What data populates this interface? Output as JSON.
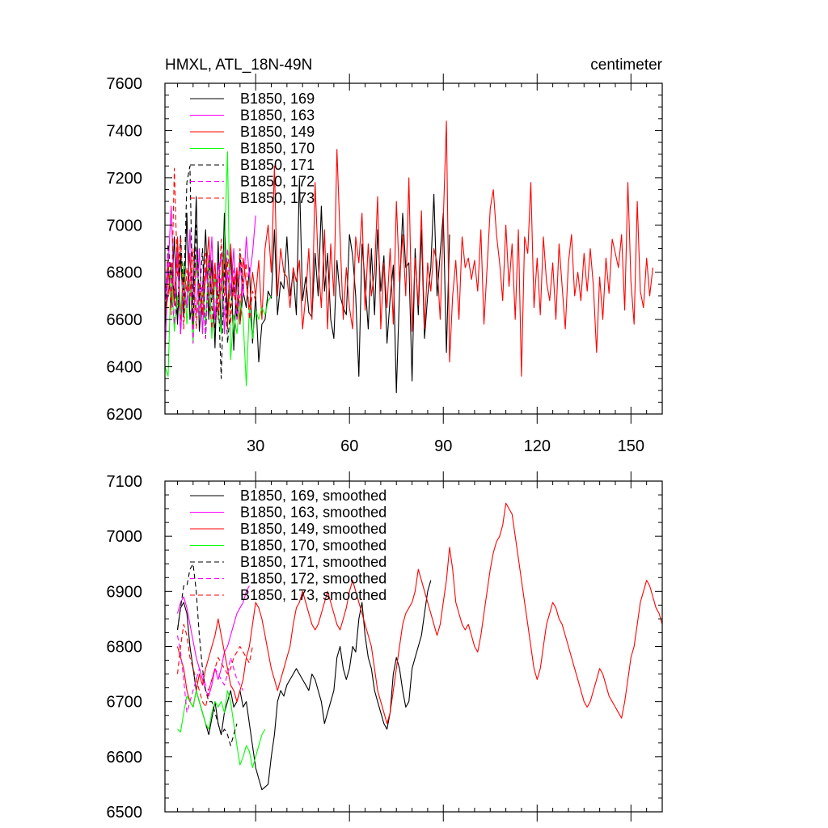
{
  "chart_data": [
    {
      "type": "line",
      "title": "HMXL, ATL_18N-49N",
      "units_label": "centimeter",
      "xlabel": "",
      "ylabel": "",
      "xlim": [
        1,
        160
      ],
      "ylim": [
        6200,
        7600
      ],
      "xticks": [
        30,
        60,
        90,
        120,
        150
      ],
      "yticks": [
        6200,
        6400,
        6600,
        6800,
        7000,
        7200,
        7400,
        7600
      ],
      "legend_position": "top-left",
      "series": [
        {
          "name": "B1850, 169",
          "color": "#000000",
          "dash": "solid",
          "x_start": 1,
          "values": [
            6560,
            6820,
            6650,
            6950,
            6580,
            6880,
            6610,
            7050,
            6600,
            6700,
            7120,
            6550,
            6720,
            6980,
            6600,
            6850,
            6480,
            6930,
            6540,
            7050,
            6610,
            6900,
            6470,
            6800,
            6580,
            6720,
            6650,
            6820,
            6500,
            6700,
            6420,
            6580,
            6600,
            6720,
            6690,
            6980,
            6620,
            6760,
            6730,
            6950,
            6700,
            6800,
            6620,
            7200,
            6680,
            6780,
            6630,
            6610,
            6880,
            6700,
            7080,
            6720,
            6880,
            6600,
            6520,
            6850,
            6700,
            6650,
            6620,
            6960,
            6870,
            6700,
            6360,
            6920,
            6760,
            6560,
            6900,
            6620,
            6980,
            6720,
            6870,
            6500,
            6690,
            6830,
            6290,
            6720,
            7050,
            6820,
            6840,
            6340,
            6900,
            6620,
            6980,
            6520,
            6700,
            6820,
            7130,
            6700,
            6880,
            7050,
            6460,
            6960
          ]
        },
        {
          "name": "B1850, 163",
          "color": "#ff00ff",
          "dash": "solid",
          "x_start": 1,
          "values": [
            6450,
            6820,
            7080,
            6680,
            6900,
            6540,
            6780,
            6650,
            6980,
            6720,
            6620,
            6900,
            6540,
            6820,
            6700,
            6950,
            6600,
            6760,
            6880,
            6540,
            6800,
            6700,
            6900,
            6600,
            6840,
            6700,
            6950,
            6780,
            6880,
            7040
          ]
        },
        {
          "name": "B1850, 149",
          "color": "#ff0000",
          "dash": "solid",
          "x_start": 1,
          "values": [
            6620,
            6700,
            6840,
            6660,
            6950,
            6600,
            6800,
            6720,
            6880,
            6560,
            6840,
            6700,
            6620,
            6780,
            6950,
            6700,
            6840,
            6600,
            6760,
            6880,
            6560,
            6920,
            6700,
            6820,
            6580,
            6860,
            6750,
            6640,
            6800,
            6700,
            6850,
            6600,
            6900,
            7000,
            6800,
            7250,
            6700,
            6900,
            6800,
            6780,
            6650,
            6820,
            6760,
            6850,
            6560,
            6700,
            6900,
            6600,
            7180,
            6840,
            6650,
            6980,
            6560,
            6920,
            6700,
            7320,
            6950,
            6600,
            6820,
            6650,
            6560,
            6950,
            6840,
            7050,
            6640,
            6920,
            6700,
            6800,
            7120,
            6560,
            6840,
            6650,
            6900,
            6580,
            7100,
            6760,
            6960,
            6700,
            7200,
            6550,
            6860,
            6660,
            7060,
            6560,
            6840,
            6720,
            6900,
            6840,
            6600,
            7020,
            7440,
            6420,
            6700,
            6850,
            6600,
            6950,
            6820,
            6860,
            6770,
            6850,
            6720,
            6980,
            6580,
            6820,
            7070,
            7150,
            6960,
            6840,
            6680,
            7000,
            6740,
            6920,
            6600,
            6980,
            6360,
            6950,
            6880,
            7180,
            6650,
            6860,
            6620,
            6950,
            6760,
            6680,
            6840,
            6600,
            6920,
            6740,
            6560,
            6840,
            6960,
            6700,
            6800,
            6680,
            6880,
            6720,
            6900,
            6740,
            6460,
            6780,
            6600,
            6860,
            6710,
            6940,
            6880,
            6820,
            6960,
            6640,
            7180,
            6760,
            6580,
            7100,
            6720,
            6650,
            6860,
            6700,
            6820
          ]
        },
        {
          "name": "B1850, 170",
          "color": "#00ff00",
          "dash": "solid",
          "x_start": 1,
          "values": [
            6400,
            6360,
            6820,
            6550,
            6700,
            6620,
            6840,
            6580,
            6760,
            6500,
            6900,
            6640,
            6720,
            6580,
            6860,
            6520,
            6780,
            6620,
            6540,
            6900,
            7310,
            6430,
            6620,
            6540,
            6680,
            6600,
            6320,
            6650,
            6520,
            6640,
            6600,
            6650,
            6620,
            6680,
            6700
          ]
        },
        {
          "name": "B1850, 171",
          "color": "#000000",
          "dash": "dashed",
          "x_start": 1,
          "values": [
            6620,
            6920,
            6780,
            6720,
            6600,
            6960,
            6700,
            7180,
            7250,
            6580,
            7000,
            6680,
            6900,
            6520,
            6860,
            6650,
            6560,
            6720,
            6350,
            6840,
            6500,
            6650,
            6760,
            6600,
            6880,
            6720
          ]
        },
        {
          "name": "B1850, 172",
          "color": "#ff00ff",
          "dash": "dashed",
          "x_start": 1,
          "values": [
            6650,
            6900,
            6720,
            6580,
            6880,
            6540,
            6760,
            6650,
            6800,
            6500,
            6900,
            6620,
            6760,
            6520,
            6880,
            6700,
            6600,
            6840,
            6740,
            6620,
            6900,
            6720,
            6820,
            6600,
            6700,
            6750
          ]
        },
        {
          "name": "B1850, 173",
          "color": "#ff0000",
          "dash": "dashed",
          "x_start": 1,
          "values": [
            6700,
            6850,
            6620,
            7240,
            6780,
            6950,
            6560,
            6820,
            6700,
            6900,
            6560,
            6760,
            6640,
            6880,
            6720,
            6560,
            6800,
            6620,
            6940,
            6700,
            6850,
            6580,
            6780,
            6640,
            6900,
            6760,
            6840,
            6600,
            6720,
            6680
          ]
        }
      ]
    },
    {
      "type": "line",
      "title": "",
      "xlabel": "",
      "ylabel": "",
      "xlim": [
        1,
        160
      ],
      "ylim": [
        6500,
        7100
      ],
      "xticks": [
        30,
        60,
        90,
        120,
        150
      ],
      "yticks": [
        6500,
        6600,
        6700,
        6800,
        6900,
        7000,
        7100
      ],
      "legend_position": "top-left",
      "series": [
        {
          "name": "B1850, 169, smoothed",
          "color": "#000000",
          "dash": "solid",
          "x_start": 5,
          "values": [
            6830,
            6870,
            6880,
            6860,
            6800,
            6760,
            6720,
            6700,
            6680,
            6660,
            6640,
            6670,
            6700,
            6660,
            6640,
            6680,
            6700,
            6720,
            6690,
            6700,
            6720,
            6690,
            6700,
            6660,
            6620,
            6580,
            6560,
            6540,
            6545,
            6550,
            6600,
            6640,
            6700,
            6720,
            6710,
            6730,
            6740,
            6750,
            6760,
            6750,
            6740,
            6730,
            6720,
            6750,
            6740,
            6720,
            6700,
            6660,
            6680,
            6700,
            6720,
            6780,
            6800,
            6760,
            6740,
            6760,
            6800,
            6790,
            6850,
            6880,
            6820,
            6780,
            6760,
            6720,
            6700,
            6680,
            6660,
            6650,
            6680,
            6750,
            6780,
            6760,
            6720,
            6690,
            6700,
            6760,
            6780,
            6800,
            6820,
            6860,
            6900,
            6920
          ]
        },
        {
          "name": "B1850, 163, smoothed",
          "color": "#ff00ff",
          "dash": "solid",
          "x_start": 5,
          "values": [
            6860,
            6880,
            6890,
            6870,
            6840,
            6810,
            6780,
            6760,
            6740,
            6720,
            6710,
            6730,
            6760,
            6740,
            6760,
            6790,
            6800,
            6820,
            6840,
            6860,
            6870,
            6880,
            6900,
            6910
          ]
        },
        {
          "name": "B1850, 149, smoothed",
          "color": "#ff0000",
          "dash": "solid",
          "x_start": 5,
          "values": [
            6800,
            6780,
            6760,
            6720,
            6700,
            6690,
            6720,
            6750,
            6730,
            6760,
            6780,
            6800,
            6820,
            6850,
            6820,
            6790,
            6760,
            6730,
            6720,
            6700,
            6720,
            6740,
            6780,
            6800,
            6840,
            6880,
            6870,
            6850,
            6820,
            6790,
            6760,
            6740,
            6720,
            6740,
            6760,
            6780,
            6800,
            6840,
            6870,
            6880,
            6900,
            6880,
            6860,
            6840,
            6830,
            6840,
            6860,
            6880,
            6900,
            6880,
            6860,
            6840,
            6830,
            6850,
            6870,
            6900,
            6920,
            6900,
            6880,
            6860,
            6840,
            6820,
            6800,
            6760,
            6720,
            6700,
            6680,
            6660,
            6680,
            6720,
            6760,
            6800,
            6840,
            6860,
            6870,
            6880,
            6900,
            6940,
            6920,
            6900,
            6880,
            6860,
            6840,
            6820,
            6840,
            6880,
            6920,
            6980,
            6940,
            6880,
            6860,
            6840,
            6830,
            6840,
            6820,
            6800,
            6790,
            6820,
            6860,
            6900,
            6940,
            6970,
            6990,
            7000,
            7020,
            7060,
            7050,
            7040,
            7000,
            6960,
            6920,
            6880,
            6840,
            6800,
            6760,
            6740,
            6760,
            6800,
            6840,
            6860,
            6880,
            6870,
            6850,
            6840,
            6820,
            6800,
            6780,
            6760,
            6740,
            6720,
            6700,
            6690,
            6700,
            6720,
            6740,
            6760,
            6750,
            6730,
            6710,
            6700,
            6690,
            6680,
            6670,
            6700,
            6740,
            6780,
            6800,
            6840,
            6880,
            6900,
            6920,
            6910,
            6890,
            6870,
            6860,
            6840,
            6820,
            6810,
            6800
          ]
        },
        {
          "name": "B1850, 170, smoothed",
          "color": "#00ff00",
          "dash": "solid",
          "x_start": 5,
          "values": [
            6650,
            6645,
            6680,
            6710,
            6700,
            6690,
            6720,
            6700,
            6680,
            6660,
            6650,
            6680,
            6700,
            6690,
            6700,
            6680,
            6720,
            6700,
            6660,
            6620,
            6585,
            6600,
            6620,
            6610,
            6580,
            6600,
            6620,
            6640,
            6650
          ]
        },
        {
          "name": "B1850, 171, smoothed",
          "color": "#000000",
          "dash": "dashed",
          "x_start": 5,
          "values": [
            6830,
            6870,
            6910,
            6910,
            6940,
            6950,
            6900,
            6820,
            6760,
            6720,
            6700,
            6700,
            6680,
            6660,
            6640,
            6650,
            6640,
            6620,
            6640,
            6660
          ]
        },
        {
          "name": "B1850, 172, smoothed",
          "color": "#ff00ff",
          "dash": "dashed",
          "x_start": 5,
          "values": [
            6820,
            6790,
            6740,
            6680,
            6700,
            6720,
            6740,
            6760,
            6750,
            6730,
            6720,
            6740,
            6760,
            6750,
            6740,
            6730,
            6750,
            6780,
            6760,
            6740,
            6730,
            6720
          ]
        },
        {
          "name": "B1850, 173, smoothed",
          "color": "#ff0000",
          "dash": "dashed",
          "x_start": 5,
          "values": [
            6750,
            6800,
            6840,
            6820,
            6780,
            6760,
            6740,
            6720,
            6700,
            6690,
            6720,
            6740,
            6760,
            6780,
            6770,
            6760,
            6750,
            6760,
            6780,
            6790,
            6800,
            6790,
            6780,
            6770,
            6800
          ]
        }
      ]
    }
  ]
}
